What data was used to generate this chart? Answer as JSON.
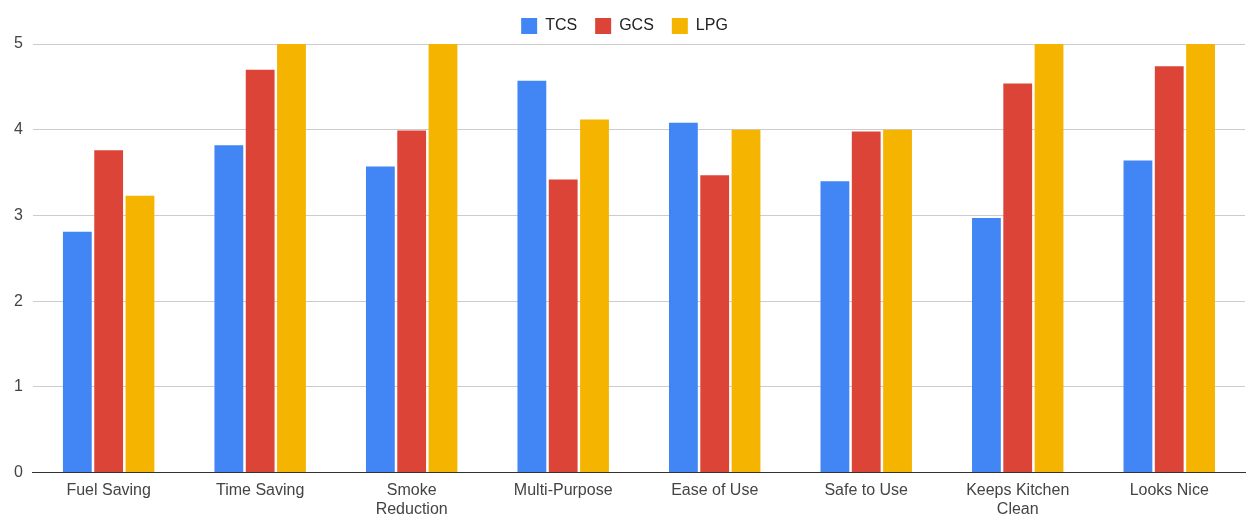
{
  "chart_data": {
    "type": "bar",
    "categories": [
      "Fuel Saving",
      "Time Saving",
      "Smoke Reduction",
      "Multi-Purpose",
      "Ease of Use",
      "Safe to Use",
      "Keeps Kitchen Clean",
      "Looks Nice"
    ],
    "series": [
      {
        "name": "TCS",
        "color": "#4285f4",
        "values": [
          2.81,
          3.82,
          3.57,
          4.57,
          4.08,
          3.4,
          2.97,
          3.64
        ]
      },
      {
        "name": "GCS",
        "color": "#db4437",
        "values": [
          3.76,
          4.7,
          3.99,
          3.42,
          3.47,
          3.98,
          4.54,
          4.74
        ]
      },
      {
        "name": "LPG",
        "color": "#f4b400",
        "values": [
          3.23,
          5,
          5,
          4.12,
          4,
          4,
          5,
          5
        ]
      }
    ],
    "ylim": [
      0,
      5
    ],
    "yticks": [
      0,
      1,
      2,
      3,
      4,
      5
    ],
    "grid": "y",
    "legend": "top"
  }
}
